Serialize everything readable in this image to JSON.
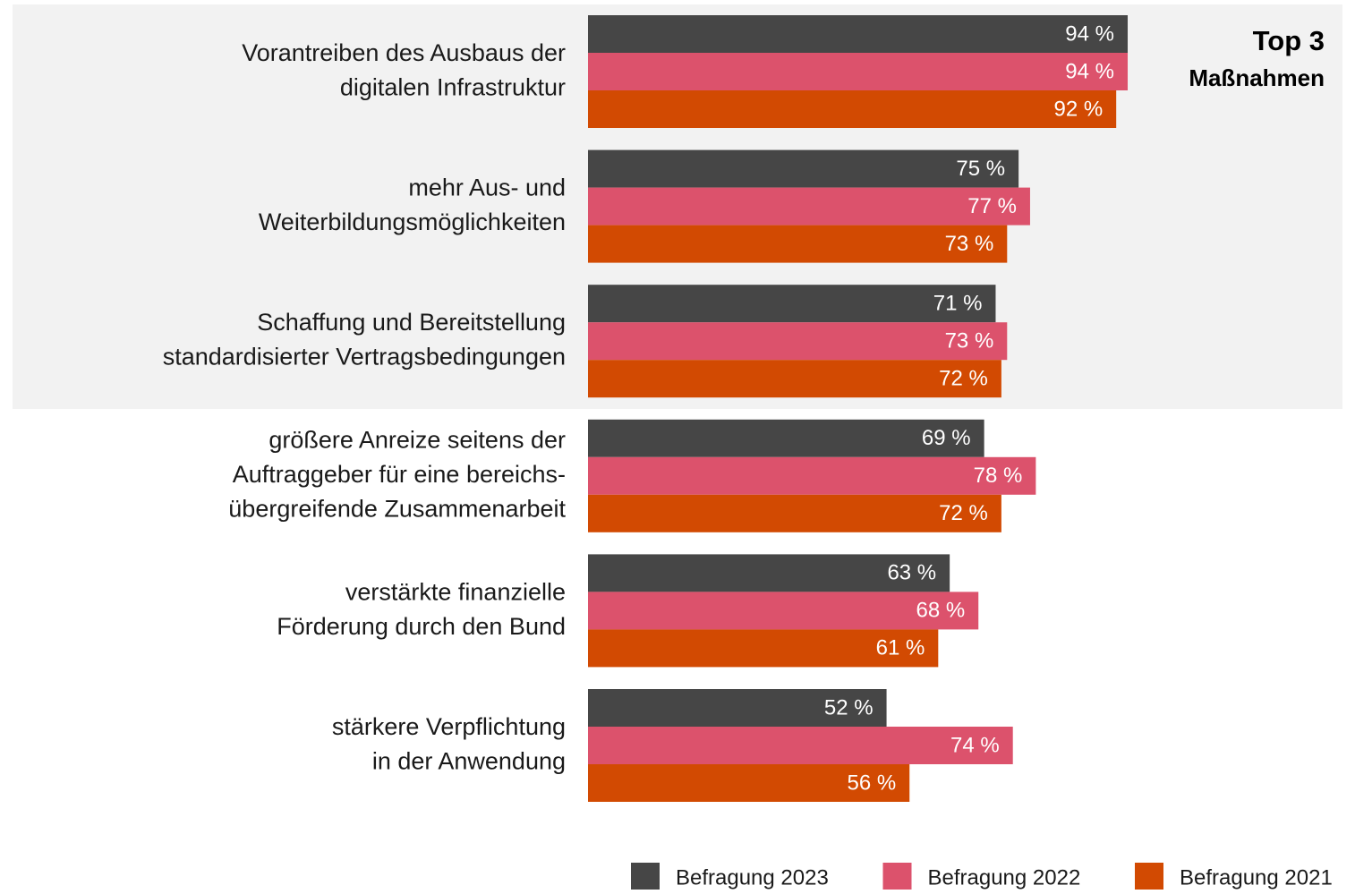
{
  "chart_data": {
    "type": "barh",
    "annotation": {
      "title": "Top 3",
      "subtitle": "Maßnahmen"
    },
    "categories": [
      [
        "Vorantreiben des Ausbaus der",
        "digitalen Infrastruktur"
      ],
      [
        "mehr Aus- und",
        "Weiterbildungsmöglichkeiten"
      ],
      [
        "Schaffung und Bereitstellung",
        "standardisierter Vertragsbedingungen"
      ],
      [
        "größere Anreize seitens der",
        "Auftraggeber für eine bereichs-",
        "übergreifende Zusammenarbeit"
      ],
      [
        "verstärkte finanzielle",
        "Förderung durch den Bund"
      ],
      [
        "stärkere Verpflichtung",
        "in der Anwendung"
      ]
    ],
    "series": [
      {
        "name": "Befragung 2023",
        "color": "#464646",
        "values": [
          94,
          75,
          71,
          69,
          63,
          52
        ],
        "value_labels": [
          "94 %",
          "75 %",
          "71 %",
          "69 %",
          "63 %",
          "52 %"
        ]
      },
      {
        "name": "Befragung 2022",
        "color": "#dc526c",
        "values": [
          94,
          77,
          73,
          78,
          68,
          74
        ],
        "value_labels": [
          "94 %",
          "77 %",
          "73 %",
          "78 %",
          "68 %",
          "74 %"
        ]
      },
      {
        "name": "Befragung 2021",
        "color": "#d24a02",
        "values": [
          92,
          73,
          72,
          72,
          61,
          56
        ],
        "value_labels": [
          "92 %",
          "73 %",
          "72 %",
          "72 %",
          "61 %",
          "56 %"
        ]
      }
    ],
    "xlim": [
      0,
      100
    ],
    "legend": "bottom-right"
  }
}
